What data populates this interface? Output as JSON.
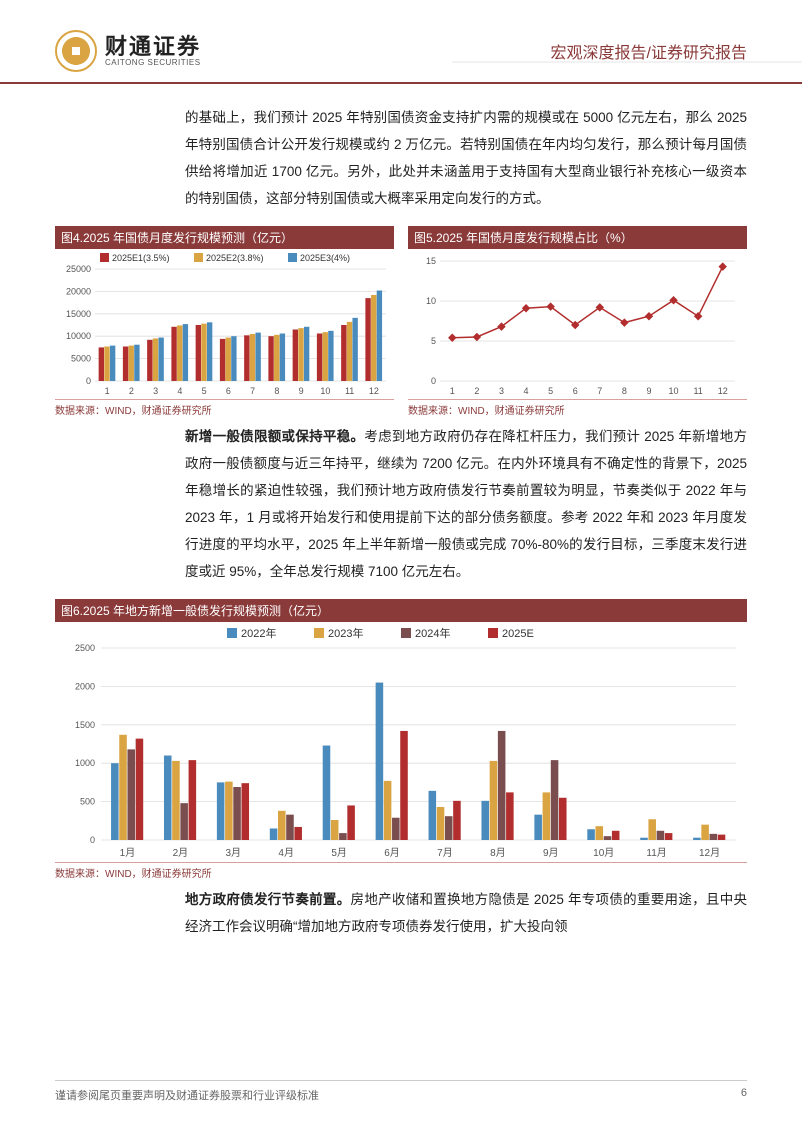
{
  "header": {
    "logo_cn": "财通证券",
    "logo_en": "CAITONG SECURITIES",
    "report_type": "宏观深度报告/证券研究报告"
  },
  "para1": "的基础上，我们预计 2025 年特别国债资金支持扩内需的规模或在 5000 亿元左右，那么 2025 年特别国债合计公开发行规模或约 2 万亿元。若特别国债在年内均匀发行，那么预计每月国债供给将增加近 1700 亿元。另外，此处并未涵盖用于支持国有大型商业银行补充核心一级资本的特别国债，这部分特别国债或大概率采用定向发行的方式。",
  "chart4": {
    "title": "图4.2025 年国债月度发行规模预测（亿元）",
    "type": "bar",
    "categories": [
      "1",
      "2",
      "3",
      "4",
      "5",
      "6",
      "7",
      "8",
      "9",
      "10",
      "11",
      "12"
    ],
    "series": [
      {
        "name": "2025E1(3.5%)",
        "color": "#b22e2e",
        "values": [
          7500,
          7700,
          9200,
          12100,
          12500,
          9400,
          10200,
          10000,
          11500,
          10600,
          12500,
          18500
        ]
      },
      {
        "name": "2025E2(3.8%)",
        "color": "#d9a441",
        "values": [
          7700,
          7900,
          9500,
          12400,
          12800,
          9700,
          10500,
          10300,
          11800,
          10900,
          13200,
          19200
        ]
      },
      {
        "name": "2025E3(4%)",
        "color": "#4a8bbd",
        "values": [
          7900,
          8100,
          9700,
          12700,
          13100,
          10000,
          10800,
          10600,
          12100,
          11200,
          14100,
          20200
        ]
      }
    ],
    "ylim": [
      0,
      25000
    ],
    "ytick_step": 5000,
    "grid_color": "#dddddd",
    "axis_fontsize": 9,
    "source": "数据来源：WIND，财通证券研究所"
  },
  "chart5": {
    "title": "图5.2025 年国债月度发行规模占比（%）",
    "type": "line",
    "categories": [
      "1",
      "2",
      "3",
      "4",
      "5",
      "6",
      "7",
      "8",
      "9",
      "10",
      "11",
      "12"
    ],
    "series": [
      {
        "name": "pct",
        "color": "#b22e2e",
        "values": [
          5.4,
          5.5,
          6.8,
          9.1,
          9.3,
          7.0,
          9.2,
          7.3,
          8.1,
          10.1,
          8.1,
          14.3
        ]
      }
    ],
    "ylim": [
      0,
      15
    ],
    "ytick_step": 5,
    "grid_color": "#dddddd",
    "marker": "diamond",
    "axis_fontsize": 9,
    "source": "数据来源：WIND，财通证券研究所"
  },
  "para2_lead": "新增一般债限额或保持平稳。",
  "para2": "考虑到地方政府仍存在降杠杆压力，我们预计 2025 年新增地方政府一般债额度与近三年持平，继续为 7200 亿元。在内外环境具有不确定性的背景下，2025 年稳增长的紧迫性较强，我们预计地方政府债发行节奏前置较为明显，节奏类似于 2022 年与 2023 年，1 月或将开始发行和使用提前下达的部分债务额度。参考 2022 年和 2023 年月度发行进度的平均水平，2025 年上半年新增一般债或完成 70%-80%的发行目标，三季度末发行进度或近 95%，全年总发行规模 7100 亿元左右。",
  "chart6": {
    "title": "图6.2025 年地方新增一般债发行规模预测（亿元）",
    "type": "bar",
    "categories": [
      "1月",
      "2月",
      "3月",
      "4月",
      "5月",
      "6月",
      "7月",
      "8月",
      "9月",
      "10月",
      "11月",
      "12月"
    ],
    "series": [
      {
        "name": "2022年",
        "color": "#4a8bbd",
        "values": [
          1000,
          1100,
          750,
          150,
          1230,
          2050,
          640,
          510,
          330,
          140,
          30,
          30
        ]
      },
      {
        "name": "2023年",
        "color": "#d9a441",
        "values": [
          1370,
          1030,
          760,
          380,
          260,
          770,
          430,
          1030,
          620,
          180,
          270,
          200
        ]
      },
      {
        "name": "2024年",
        "color": "#7a4e4e",
        "values": [
          1180,
          480,
          690,
          330,
          90,
          290,
          310,
          1420,
          1040,
          50,
          120,
          80
        ]
      },
      {
        "name": "2025E",
        "color": "#b22e2e",
        "values": [
          1320,
          1040,
          740,
          170,
          450,
          1420,
          510,
          620,
          550,
          120,
          90,
          70
        ]
      }
    ],
    "ylim": [
      0,
      2500
    ],
    "ytick_step": 500,
    "grid_color": "#dddddd",
    "axis_fontsize": 9,
    "source": "数据来源：WIND，财通证券研究所"
  },
  "para3_lead": "地方政府债发行节奏前置。",
  "para3": "房地产收储和置换地方隐债是 2025 年专项债的重要用途，且中央经济工作会议明确“增加地方政府专项债券发行使用，扩大投向领",
  "footer": {
    "disclaimer": "谨请参阅尾页重要声明及财通证券股票和行业评级标准",
    "page": "6"
  }
}
